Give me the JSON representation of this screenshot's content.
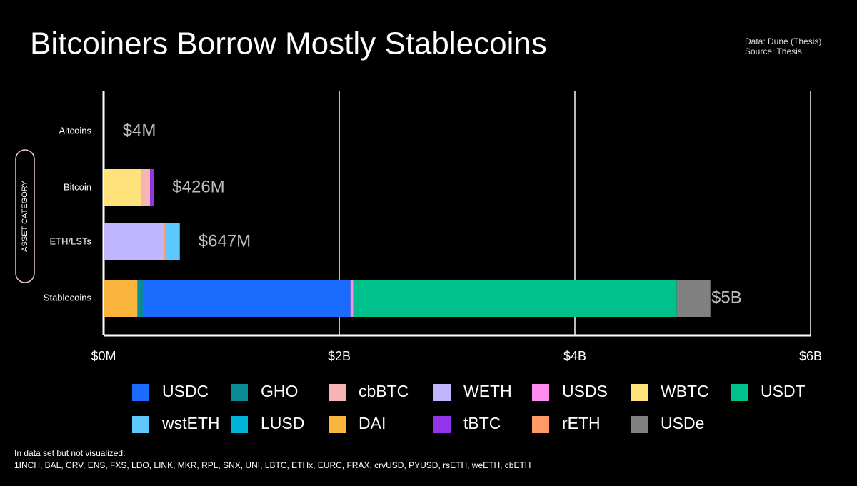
{
  "chart_data": {
    "type": "bar",
    "orientation": "horizontal",
    "stacked": true,
    "title": "Bitcoiners Borrow Mostly Stablecoins",
    "source_lines": [
      "Data: Dune (Thesis)",
      "Source: Thesis"
    ],
    "y_label": "ASSET CATEGORY",
    "categories": [
      "Altcoins",
      "Bitcoin",
      "ETH/LSTs",
      "Stablecoins"
    ],
    "series": [
      {
        "name": "DAI",
        "color": "#fbb53c",
        "values": [
          null,
          null,
          null,
          285000000
        ]
      },
      {
        "name": "LUSD",
        "color": "#00b4d8",
        "values": [
          null,
          null,
          null,
          10000000
        ]
      },
      {
        "name": "GHO",
        "color": "#0a8a96",
        "values": [
          null,
          null,
          null,
          50000000
        ]
      },
      {
        "name": "USDC",
        "color": "#1a6cff",
        "values": [
          null,
          null,
          null,
          1750000000
        ]
      },
      {
        "name": "USDS",
        "color": "#ff8cf0",
        "values": [
          null,
          null,
          null,
          25000000
        ]
      },
      {
        "name": "USDT",
        "color": "#00c08b",
        "values": [
          null,
          null,
          null,
          2745000000
        ]
      },
      {
        "name": "USDe",
        "color": "#808080",
        "values": [
          null,
          null,
          null,
          285000000
        ]
      },
      {
        "name": "WBTC",
        "color": "#ffe27a",
        "values": [
          null,
          320000000,
          null,
          null
        ]
      },
      {
        "name": "cbBTC",
        "color": "#f6b4b4",
        "values": [
          null,
          75000000,
          null,
          null
        ]
      },
      {
        "name": "tBTC",
        "color": "#9333ea",
        "values": [
          null,
          31000000,
          null,
          null
        ]
      },
      {
        "name": "WETH",
        "color": "#bfb6ff",
        "values": [
          null,
          null,
          515000000,
          null
        ]
      },
      {
        "name": "rETH",
        "color": "#ff9966",
        "values": [
          null,
          null,
          15000000,
          null
        ]
      },
      {
        "name": "wstETH",
        "color": "#5cc8ff",
        "values": [
          null,
          null,
          117000000,
          null
        ]
      }
    ],
    "totals": {
      "values": [
        4000000,
        426000000,
        647000000,
        5000000000
      ],
      "value_labels": [
        "$4M",
        "$426M",
        "$647M",
        "$5B"
      ]
    },
    "xlim": [
      0,
      6000000000
    ],
    "xticks": [
      {
        "value": 0,
        "label": "$0M"
      },
      {
        "value": 2000000000,
        "label": "$2B"
      },
      {
        "value": 4000000000,
        "label": "$4B"
      },
      {
        "value": 6000000000,
        "label": "$6B"
      }
    ],
    "grid": true,
    "footnote": [
      "In data set but not visualized:",
      "1INCH, BAL, CRV, ENS, FXS, LDO, LINK, MKR, RPL, SNX, UNI, LBTC, ETHx, EURC, FRAX, crvUSD, PYUSD, rsETH, weETH, cbETH"
    ]
  }
}
